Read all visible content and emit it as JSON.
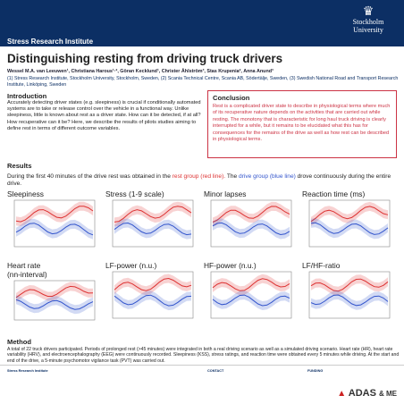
{
  "header": {
    "institute": "Stress Research Institute",
    "logo_line1": "Stockholm",
    "logo_line2": "University",
    "logo_icon": "crown-icon"
  },
  "title": "Distinguishing resting from driving truck drivers",
  "authors": "Wessel M.A. van Leeuwen¹, Christiana Harous¹·², Göran Kecklund¹, Christer Åhlström³, Stas Krupenia², Anna Anund³",
  "affiliations": "(1) Stress Research Institute, Stockholm University, Stockholm, Sweden, (2) Scania Technical Centre, Scania AB, Södertälje, Sweden, (3) Swedish National Road and Transport Research Institute, Linköping, Sweden",
  "introduction": {
    "heading": "Introduction",
    "text": "Accurately detecting driver states (e.g. sleepiness) is crucial if conditionally automated systems are to take or release control over the vehicle in a functional way. Unlike sleepiness, little is known about rest as a driver state. How can it be detected, if at all? How recuperative can it be? Here, we describe the results of pilots studies aiming to define rest in terms of different outcome variables."
  },
  "conclusion": {
    "heading": "Conclusion",
    "text": "Rest is a complicated driver state to describe in physiological terms where much of its recuperative nature depends on the activities that are carried out while resting. The monotony that is characteristic for long haul truck driving is clearly interrupted for a while, but it remains to be elucidated what this has for consequences for the remains of the drive as well as how rest can be described in physiological terms."
  },
  "results": {
    "heading": "Results",
    "text_a": "During the first 40 minutes of the drive rest was obtained in the ",
    "rest_group": "rest group (red line).",
    "text_b": " The ",
    "drive_group": "drive group (blue line)",
    "text_c": " drove continuously during the entire drive."
  },
  "plots": [
    {
      "title": "Sleepiness"
    },
    {
      "title": "Stress (1-9 scale)"
    },
    {
      "title": "Minor lapses"
    },
    {
      "title": "Reaction time (ms)"
    },
    {
      "title": "Heart rate",
      "subtitle": "(nn-interval)"
    },
    {
      "title": "LF-power (n.u.)"
    },
    {
      "title": "HF-power (n.u.)"
    },
    {
      "title": "LF/HF-ratio"
    }
  ],
  "method": {
    "heading": "Method",
    "text": "A total of 22 truck drivers participated. Periods of prolonged rest (>45 minutes) were integrated in both a real driving scenario as well as a simulated driving scenario. Heart rate (HR), heart rate variability (HRV), and electroencephalography (EEG) were continuously recorded. Sleepiness (KSS), stress ratings, and reaction time were obtained every 5 minutes while driving. At the start and end of the drive, a 5-minute psychomotor vigilance task (PVT) was carried out."
  },
  "footer": {
    "contact_label": "CONTACT",
    "funding_label": "FUNDING",
    "sponsor": "ADAS",
    "sponsor_suffix": "& ME"
  },
  "colors": {
    "header": "#0c2f64",
    "rest": "#d33",
    "drive": "#35c"
  }
}
